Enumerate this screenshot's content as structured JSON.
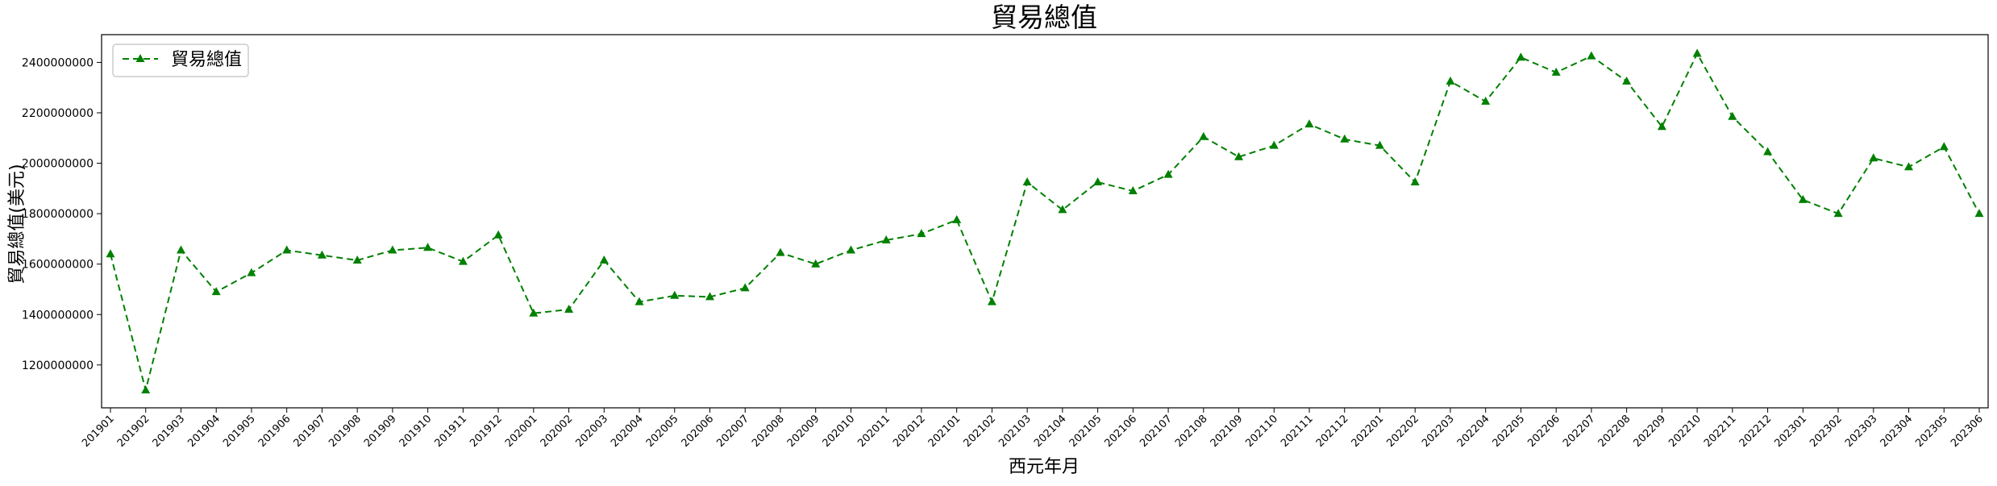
{
  "chart_data": {
    "type": "line",
    "title": "貿易總值",
    "xlabel": "西元年月",
    "ylabel": "貿易總值(美元)",
    "ylim": [
      1030000000,
      2510000000
    ],
    "yticks": [
      1200000000,
      1400000000,
      1600000000,
      1800000000,
      2000000000,
      2200000000,
      2400000000
    ],
    "ytick_labels": [
      "1200000000",
      "1400000000",
      "1600000000",
      "1800000000",
      "2000000000",
      "2200000000",
      "2400000000"
    ],
    "grid": false,
    "legend_position": "top-left",
    "categories": [
      "201901",
      "201902",
      "201903",
      "201904",
      "201905",
      "201906",
      "201907",
      "201908",
      "201909",
      "201910",
      "201911",
      "201912",
      "202001",
      "202002",
      "202003",
      "202004",
      "202005",
      "202006",
      "202007",
      "202008",
      "202009",
      "202010",
      "202011",
      "202012",
      "202101",
      "202102",
      "202103",
      "202104",
      "202105",
      "202106",
      "202107",
      "202108",
      "202109",
      "202110",
      "202111",
      "202112",
      "202201",
      "202202",
      "202203",
      "202204",
      "202205",
      "202206",
      "202207",
      "202208",
      "202209",
      "202210",
      "202211",
      "202212",
      "202301",
      "202302",
      "202303",
      "202304",
      "202305",
      "202306"
    ],
    "series": [
      {
        "name": "貿易總值",
        "color": "#008000",
        "line_style": "dashed",
        "marker": "triangle-up",
        "values": [
          1640000000,
          1100000000,
          1655000000,
          1490000000,
          1565000000,
          1655000000,
          1635000000,
          1615000000,
          1655000000,
          1665000000,
          1610000000,
          1715000000,
          1405000000,
          1420000000,
          1615000000,
          1450000000,
          1475000000,
          1470000000,
          1505000000,
          1645000000,
          1600000000,
          1655000000,
          1695000000,
          1720000000,
          1775000000,
          1450000000,
          1925000000,
          1815000000,
          1925000000,
          1890000000,
          1955000000,
          2105000000,
          2025000000,
          2070000000,
          2155000000,
          2095000000,
          2070000000,
          1925000000,
          2325000000,
          2245000000,
          2420000000,
          2360000000,
          2425000000,
          2325000000,
          2145000000,
          2435000000,
          2185000000,
          2045000000,
          1855000000,
          1800000000,
          2020000000,
          1985000000,
          2065000000,
          1800000000
        ]
      }
    ]
  }
}
